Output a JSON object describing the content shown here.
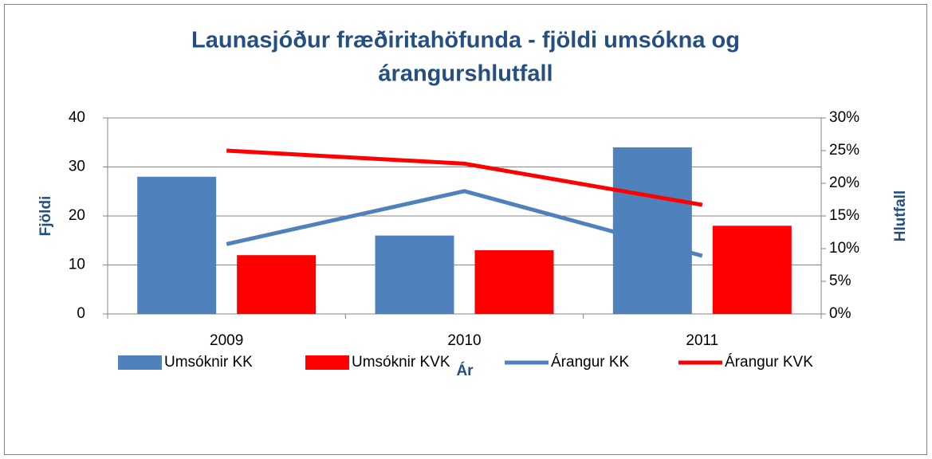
{
  "chart_data": {
    "type": "bar-line",
    "title": [
      "Launasjóður fræðiritahöfunda - fjöldi umsókna og",
      "árangurshlutfall"
    ],
    "x_label": "Ár",
    "y_label": "Fjöldi",
    "y2_label": "Hlutfall",
    "categories": [
      "2009",
      "2010",
      "2011"
    ],
    "series": [
      {
        "name": "Umsóknir KK",
        "type": "bar",
        "color": "#4f81bd",
        "values": [
          28,
          16,
          34
        ]
      },
      {
        "name": "Umsóknir KVK",
        "type": "bar",
        "color": "#ff0000",
        "values": [
          12,
          13,
          18
        ]
      },
      {
        "name": "Árangur KK",
        "type": "line",
        "axis": "y2",
        "color": "#4f81bd",
        "values": [
          10.7,
          18.8,
          8.9
        ]
      },
      {
        "name": "Árangur KVK",
        "type": "line",
        "axis": "y2",
        "color": "#ff0000",
        "values": [
          25,
          23,
          16.7
        ]
      }
    ],
    "ylim": [
      0,
      40
    ],
    "yticks": [
      0,
      10,
      20,
      30,
      40
    ],
    "y2lim": [
      0,
      30
    ],
    "y2ticks": [
      {
        "value": 0,
        "label": "0%"
      },
      {
        "value": 5,
        "label": "5%"
      },
      {
        "value": 10,
        "label": "10%"
      },
      {
        "value": 15,
        "label": "15%"
      },
      {
        "value": 20,
        "label": "20%"
      },
      {
        "value": 25,
        "label": "25%"
      },
      {
        "value": 30,
        "label": "30%"
      }
    ],
    "grid": true,
    "legend": "bottom"
  }
}
